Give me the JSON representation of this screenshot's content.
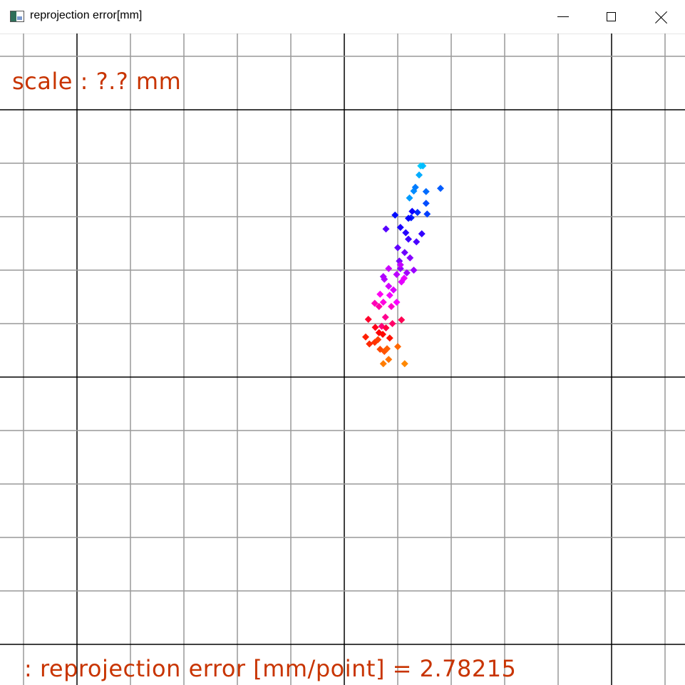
{
  "window": {
    "title": "reprojection error[mm]",
    "icon": "app-window-icon",
    "controls": [
      "minimize-icon",
      "maximize-icon",
      "close-icon"
    ]
  },
  "overlay": {
    "scale_label": "scale : ?.? mm",
    "error_label": ": reprojection error [mm/point] = 2.78215",
    "text_color": "#c83400"
  },
  "chart_data": {
    "type": "scatter",
    "grid": true,
    "major_grid_color": "#000000",
    "minor_grid_color": "#999999",
    "color_gradient": [
      "#00ccff",
      "#0000ff",
      "#9900ff",
      "#ff00ff",
      "#ff0000",
      "#ff8800"
    ],
    "points": [
      [
        1.43,
        3.95
      ],
      [
        1.47,
        3.95
      ],
      [
        1.4,
        3.78
      ],
      [
        1.22,
        3.35
      ],
      [
        1.3,
        3.48
      ],
      [
        1.33,
        3.55
      ],
      [
        1.53,
        3.47
      ],
      [
        1.8,
        3.53
      ],
      [
        1.53,
        3.25
      ],
      [
        1.55,
        3.05
      ],
      [
        1.37,
        3.08
      ],
      [
        1.25,
        2.98
      ],
      [
        0.95,
        3.03
      ],
      [
        1.2,
        2.97
      ],
      [
        1.27,
        3.1
      ],
      [
        1.05,
        2.8
      ],
      [
        1.15,
        2.7
      ],
      [
        1.45,
        2.68
      ],
      [
        1.2,
        2.58
      ],
      [
        1.35,
        2.53
      ],
      [
        0.78,
        2.77
      ],
      [
        1.0,
        2.42
      ],
      [
        1.13,
        2.33
      ],
      [
        1.03,
        2.17
      ],
      [
        1.23,
        2.23
      ],
      [
        1.05,
        2.03
      ],
      [
        1.3,
        2.0
      ],
      [
        1.17,
        1.95
      ],
      [
        0.73,
        1.88
      ],
      [
        0.75,
        1.83
      ],
      [
        0.98,
        1.92
      ],
      [
        1.05,
        2.1
      ],
      [
        0.83,
        2.03
      ],
      [
        0.83,
        1.7
      ],
      [
        0.92,
        1.63
      ],
      [
        1.07,
        1.78
      ],
      [
        1.12,
        1.85
      ],
      [
        0.85,
        1.53
      ],
      [
        0.98,
        1.4
      ],
      [
        0.67,
        1.55
      ],
      [
        0.73,
        1.4
      ],
      [
        0.88,
        1.32
      ],
      [
        0.57,
        1.38
      ],
      [
        0.65,
        1.32
      ],
      [
        0.77,
        1.12
      ],
      [
        0.7,
        0.95
      ],
      [
        0.9,
        1.0
      ],
      [
        1.07,
        1.07
      ],
      [
        0.78,
        0.92
      ],
      [
        0.45,
        1.08
      ],
      [
        0.58,
        0.93
      ],
      [
        0.65,
        0.83
      ],
      [
        0.72,
        0.8
      ],
      [
        0.85,
        0.73
      ],
      [
        0.4,
        0.75
      ],
      [
        0.47,
        0.62
      ],
      [
        0.57,
        0.65
      ],
      [
        0.63,
        0.7
      ],
      [
        0.67,
        0.52
      ],
      [
        0.75,
        0.48
      ],
      [
        0.8,
        0.53
      ],
      [
        1.0,
        0.57
      ],
      [
        0.83,
        0.33
      ],
      [
        0.73,
        0.25
      ],
      [
        1.13,
        0.25
      ]
    ]
  }
}
